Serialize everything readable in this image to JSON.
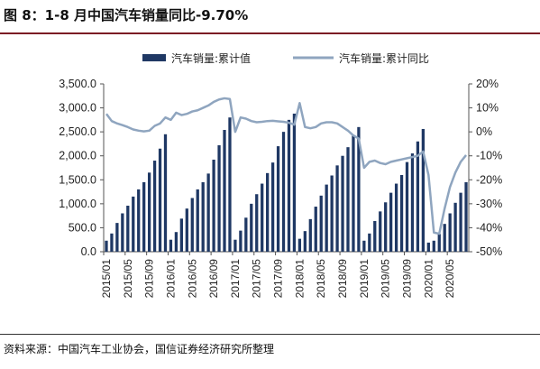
{
  "title": "图 8：1-8 月中国汽车销量同比-9.70%",
  "source": "资料来源：中国汽车工业协会，国信证券经济研究所整理",
  "chart_data": {
    "type": "bar+line",
    "categories": [
      "2015/01",
      "2015/02",
      "2015/03",
      "2015/04",
      "2015/05",
      "2015/06",
      "2015/07",
      "2015/08",
      "2015/09",
      "2015/10",
      "2015/11",
      "2015/12",
      "2016/01",
      "2016/02",
      "2016/03",
      "2016/04",
      "2016/05",
      "2016/06",
      "2016/07",
      "2016/08",
      "2016/09",
      "2016/10",
      "2016/11",
      "2016/12",
      "2017/01",
      "2017/02",
      "2017/03",
      "2017/04",
      "2017/05",
      "2017/06",
      "2017/07",
      "2017/08",
      "2017/09",
      "2017/10",
      "2017/11",
      "2017/12",
      "2018/01",
      "2018/02",
      "2018/03",
      "2018/04",
      "2018/05",
      "2018/06",
      "2018/07",
      "2018/08",
      "2018/09",
      "2018/10",
      "2018/11",
      "2018/12",
      "2019/01",
      "2019/02",
      "2019/03",
      "2019/04",
      "2019/05",
      "2019/06",
      "2019/07",
      "2019/08",
      "2019/09",
      "2019/10",
      "2019/11",
      "2019/12",
      "2020/01",
      "2020/02",
      "2020/03",
      "2020/04",
      "2020/05",
      "2020/06",
      "2020/07",
      "2020/08"
    ],
    "xtick_labels": [
      "2015/01",
      "2015/05",
      "2015/09",
      "2016/01",
      "2016/05",
      "2016/09",
      "2017/01",
      "2017/05",
      "2017/09",
      "2018/01",
      "2018/05",
      "2018/09",
      "2019/01",
      "2019/05",
      "2019/09",
      "2020/01",
      "2020/05"
    ],
    "series": [
      {
        "name": "汽车销量:累计值",
        "axis": "left",
        "color": "#1f3864",
        "values": [
          230,
          380,
          600,
          800,
          960,
          1150,
          1300,
          1450,
          1650,
          1900,
          2150,
          2450,
          250,
          410,
          690,
          900,
          1120,
          1300,
          1450,
          1630,
          1920,
          2220,
          2540,
          2800,
          250,
          440,
          710,
          1000,
          1200,
          1420,
          1640,
          1860,
          2200,
          2500,
          2750,
          2880,
          270,
          430,
          680,
          940,
          1170,
          1400,
          1590,
          1800,
          2000,
          2180,
          2420,
          2600,
          230,
          380,
          640,
          840,
          1030,
          1230,
          1420,
          1600,
          1870,
          2050,
          2300,
          2560,
          190,
          230,
          370,
          580,
          800,
          1020,
          1230,
          1450
        ]
      },
      {
        "name": "汽车销量:累计同比",
        "axis": "right",
        "color": "#8fa5bf",
        "values": [
          7.5,
          4.5,
          3.5,
          2.8,
          2.0,
          1.0,
          0.5,
          0.2,
          0.5,
          2.5,
          3.5,
          6.0,
          5.0,
          8.0,
          7.0,
          7.5,
          8.5,
          9.0,
          10.0,
          11.0,
          12.5,
          13.5,
          14.0,
          13.7,
          0.0,
          6.0,
          5.5,
          4.5,
          4.0,
          4.2,
          4.5,
          4.6,
          4.4,
          4.2,
          3.8,
          3.0,
          12.0,
          2.0,
          1.5,
          2.0,
          3.5,
          4.0,
          4.0,
          3.5,
          2.0,
          0.5,
          -1.5,
          -2.8,
          -15.0,
          -12.5,
          -12.0,
          -13.0,
          -13.5,
          -12.5,
          -12.0,
          -11.5,
          -11.0,
          -10.5,
          -10.0,
          -8.2,
          -18.0,
          -42.0,
          -42.5,
          -32.0,
          -23.0,
          -17.0,
          -12.5,
          -9.7
        ]
      }
    ],
    "y_left": {
      "min": 0,
      "max": 3500,
      "ticks": [
        "0.0",
        "500.0",
        "1,000.0",
        "1,500.0",
        "2,000.0",
        "2,500.0",
        "3,000.0",
        "3,500.0"
      ],
      "tick_values": [
        0,
        500,
        1000,
        1500,
        2000,
        2500,
        3000,
        3500
      ]
    },
    "y_right": {
      "min": -50,
      "max": 20,
      "ticks": [
        "-50%",
        "-40%",
        "-30%",
        "-20%",
        "-10%",
        "0%",
        "10%",
        "20%"
      ],
      "tick_values": [
        -50,
        -40,
        -30,
        -20,
        -10,
        0,
        10,
        20
      ]
    },
    "legend_position": "top"
  }
}
